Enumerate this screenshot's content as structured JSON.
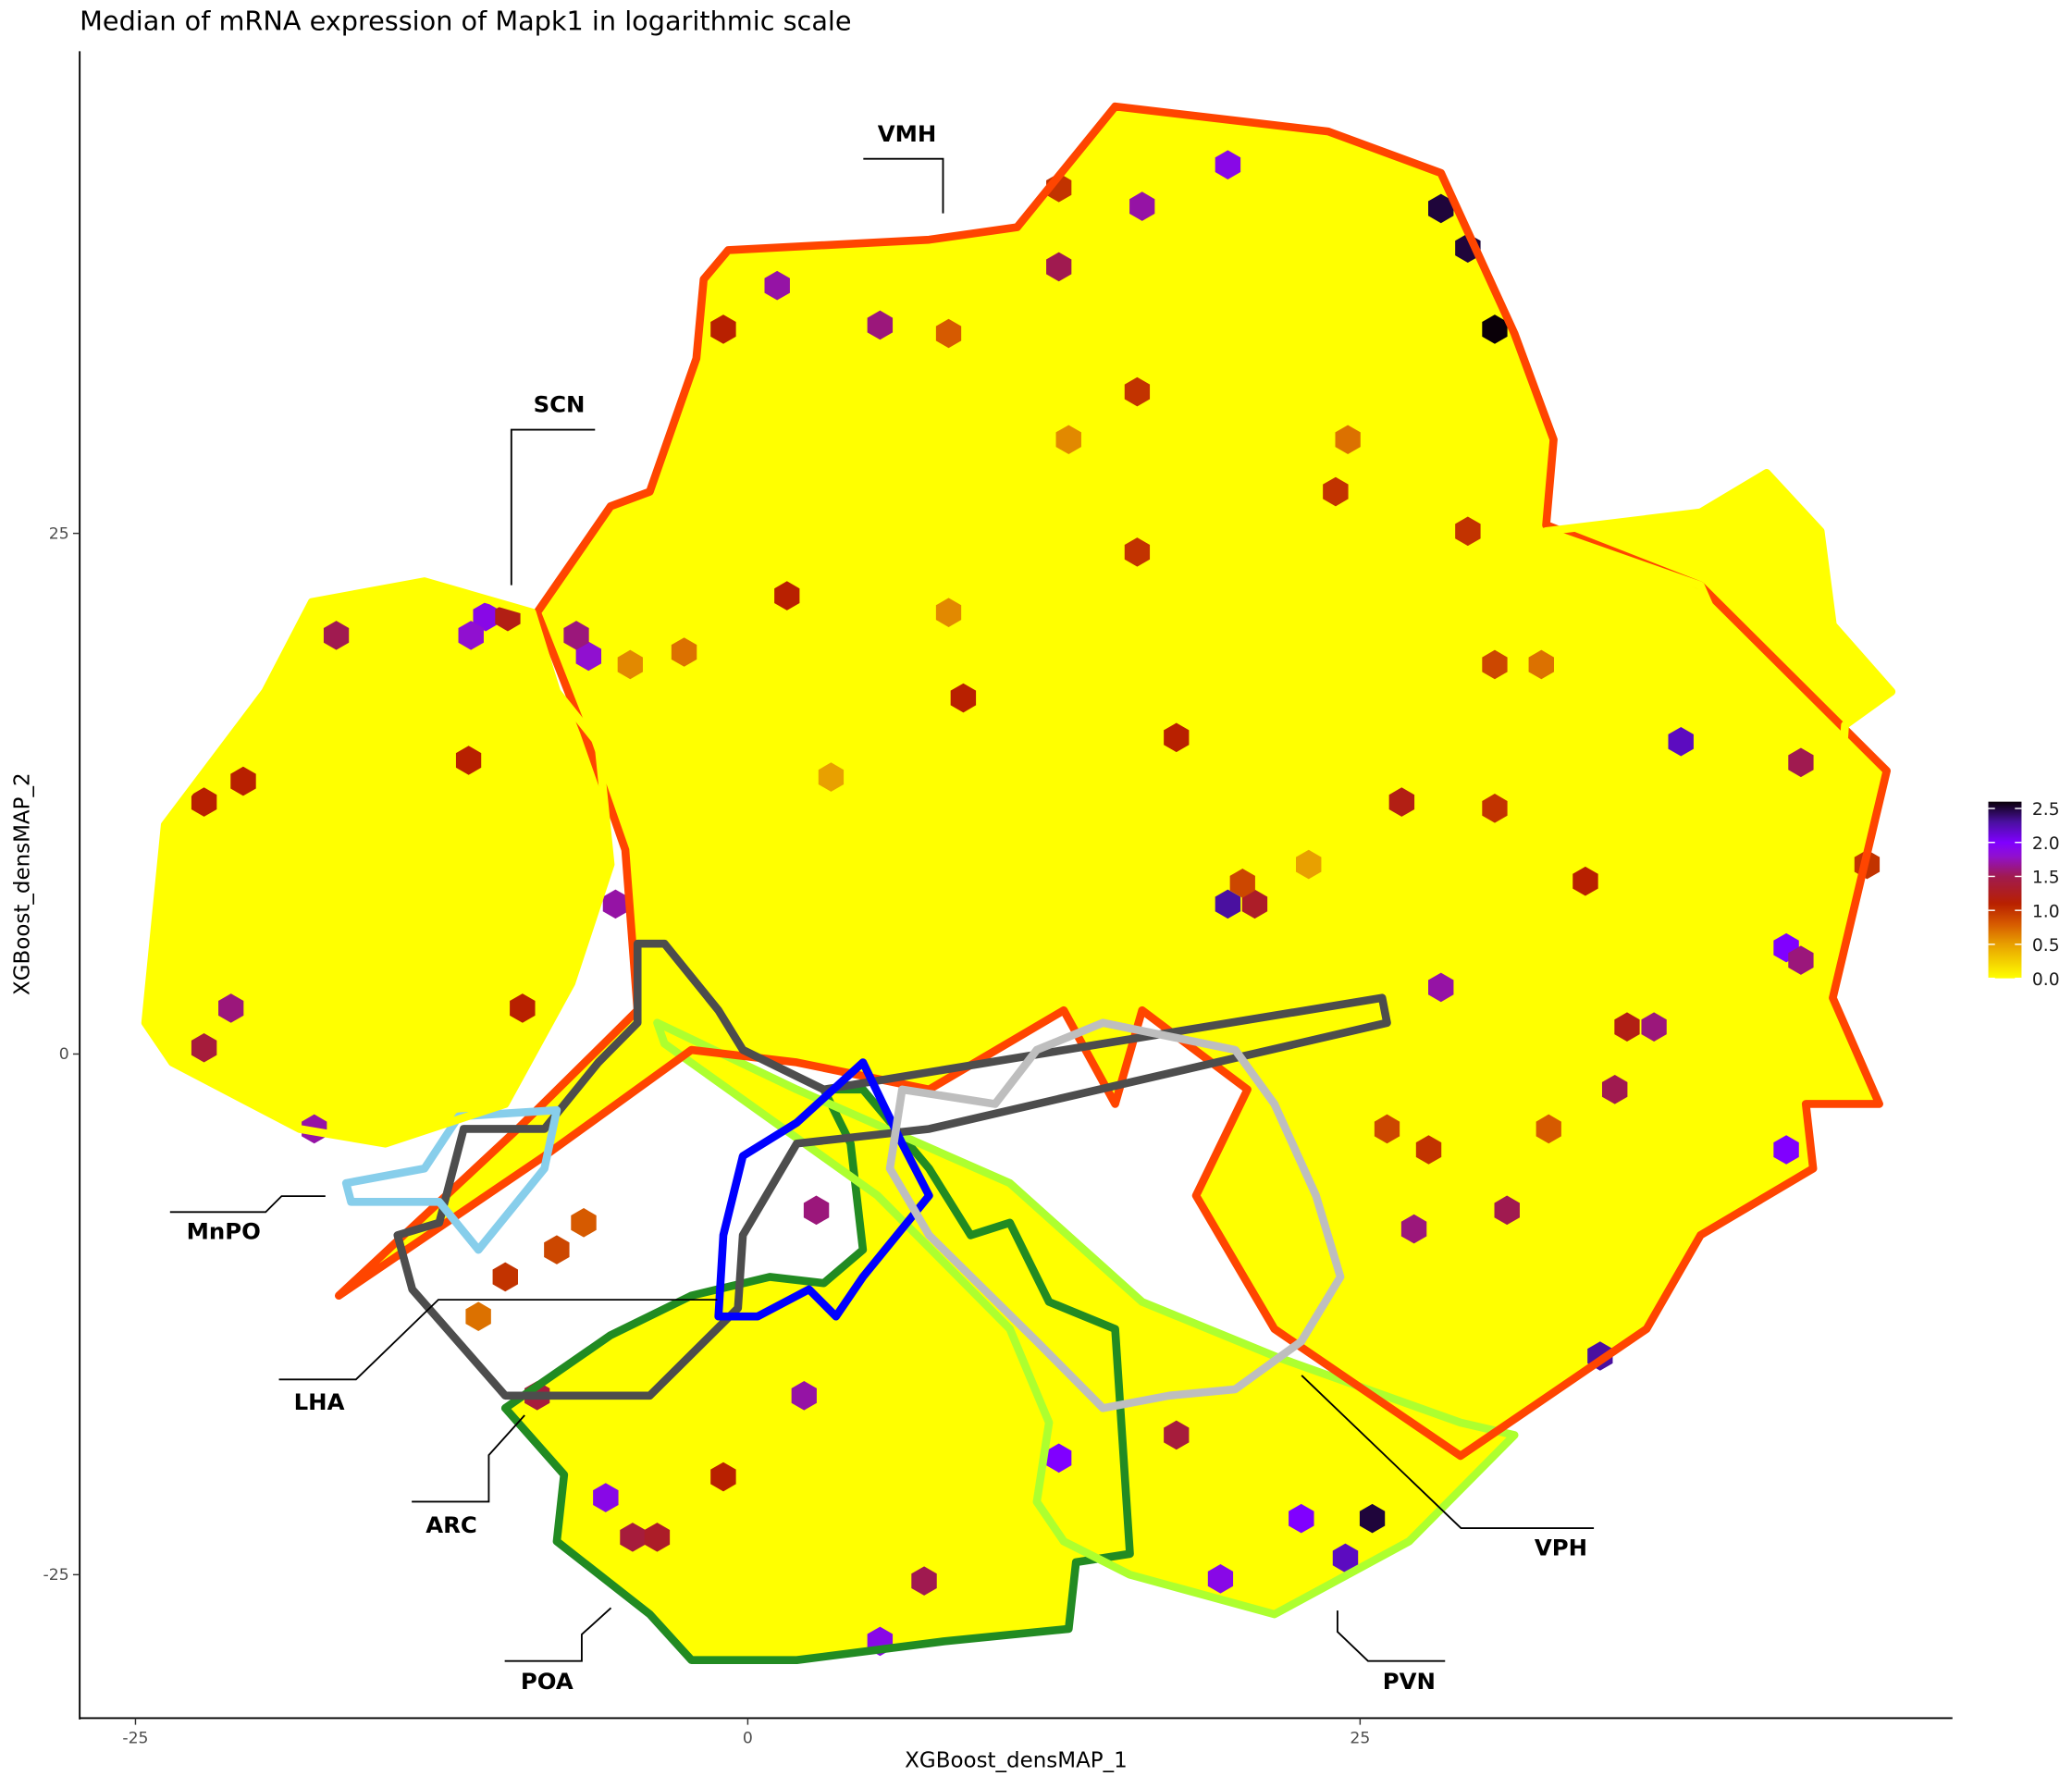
{
  "chart_data": {
    "type": "hexbin",
    "title": "Median of mRNA expression of Mapk1 in logarithmic scale",
    "xlabel": "XGBoost_densMAP_1",
    "ylabel": "XGBoost_densMAP_2",
    "x_ticks": [
      "-25",
      "0",
      "25"
    ],
    "x_tick_values": [
      -25,
      0,
      25
    ],
    "y_ticks": [
      "25",
      "0",
      "-25"
    ],
    "y_tick_values": [
      25,
      0,
      -25
    ],
    "grid": false,
    "background_value": 0.0,
    "colorbar": {
      "placement": "right",
      "ticks": [
        "2.5",
        "2.0",
        "1.5",
        "1.0",
        "0.5",
        "0.0"
      ],
      "tick_values": [
        2.5,
        2.0,
        1.5,
        1.0,
        0.5,
        0.0
      ],
      "range": [
        0,
        2.6
      ],
      "stops": [
        {
          "v": 0.0,
          "color": "#FFFF00"
        },
        {
          "v": 0.5,
          "color": "#E8A000"
        },
        {
          "v": 0.8,
          "color": "#D65A00"
        },
        {
          "v": 1.1,
          "color": "#B82000"
        },
        {
          "v": 1.5,
          "color": "#A01A50"
        },
        {
          "v": 1.8,
          "color": "#9010D0"
        },
        {
          "v": 2.0,
          "color": "#8000FF"
        },
        {
          "v": 2.3,
          "color": "#4A10A0"
        },
        {
          "v": 2.6,
          "color": "#0A0008"
        }
      ]
    },
    "hexes": [
      {
        "x": 28.3,
        "y": 40.6,
        "v": 2.5
      },
      {
        "x": 29.4,
        "y": 38.7,
        "v": 2.5
      },
      {
        "x": 30.5,
        "y": 34.8,
        "v": 2.6
      },
      {
        "x": 19.6,
        "y": 42.7,
        "v": 1.9
      },
      {
        "x": 16.1,
        "y": 40.7,
        "v": 1.7
      },
      {
        "x": 12.7,
        "y": 41.6,
        "v": 1.0
      },
      {
        "x": 12.7,
        "y": 37.8,
        "v": 1.5
      },
      {
        "x": 1.2,
        "y": 36.9,
        "v": 1.7
      },
      {
        "x": 5.4,
        "y": 35.0,
        "v": 1.6
      },
      {
        "x": -1.0,
        "y": 34.8,
        "v": 1.1
      },
      {
        "x": 15.9,
        "y": 31.8,
        "v": 1.0
      },
      {
        "x": 24.0,
        "y": 27.0,
        "v": 1.0
      },
      {
        "x": 15.9,
        "y": 24.1,
        "v": 1.0
      },
      {
        "x": 1.6,
        "y": 22.0,
        "v": 1.1
      },
      {
        "x": 8.8,
        "y": 17.1,
        "v": 1.1
      },
      {
        "x": 17.5,
        "y": 15.2,
        "v": 1.1
      },
      {
        "x": 19.6,
        "y": 7.2,
        "v": 2.3
      },
      {
        "x": 20.7,
        "y": 7.2,
        "v": 1.3
      },
      {
        "x": 20.2,
        "y": 8.2,
        "v": 0.9
      },
      {
        "x": -10.7,
        "y": 21.0,
        "v": 1.9
      },
      {
        "x": -11.3,
        "y": 20.1,
        "v": 1.8
      },
      {
        "x": -16.8,
        "y": 20.1,
        "v": 1.5
      },
      {
        "x": -9.8,
        "y": 21.0,
        "v": 1.2
      },
      {
        "x": -6.5,
        "y": 19.1,
        "v": 1.8
      },
      {
        "x": -7.0,
        "y": 20.1,
        "v": 1.6
      },
      {
        "x": -22.2,
        "y": 12.1,
        "v": 1.1
      },
      {
        "x": -20.6,
        "y": 13.1,
        "v": 1.1
      },
      {
        "x": -11.4,
        "y": 14.1,
        "v": 1.1
      },
      {
        "x": -5.4,
        "y": 7.2,
        "v": 1.7
      },
      {
        "x": -21.1,
        "y": 2.2,
        "v": 1.6
      },
      {
        "x": -22.2,
        "y": 0.3,
        "v": 1.4
      },
      {
        "x": -17.7,
        "y": -3.6,
        "v": 1.7
      },
      {
        "x": -9.2,
        "y": 2.2,
        "v": 1.1
      },
      {
        "x": 38.1,
        "y": 15.0,
        "v": 2.2
      },
      {
        "x": 43.0,
        "y": 14.0,
        "v": 1.5
      },
      {
        "x": 42.4,
        "y": 5.1,
        "v": 2.0
      },
      {
        "x": 43.0,
        "y": 4.5,
        "v": 1.6
      },
      {
        "x": 37.0,
        "y": 1.3,
        "v": 1.6
      },
      {
        "x": 35.9,
        "y": 1.3,
        "v": 1.2
      },
      {
        "x": 42.4,
        "y": -4.6,
        "v": 2.0
      },
      {
        "x": 34.8,
        "y": -14.5,
        "v": 2.3
      },
      {
        "x": 28.3,
        "y": 3.2,
        "v": 1.7
      },
      {
        "x": 35.4,
        "y": -1.7,
        "v": 1.5
      },
      {
        "x": 31.0,
        "y": -7.5,
        "v": 1.5
      },
      {
        "x": 27.2,
        "y": -8.4,
        "v": 1.6
      },
      {
        "x": 2.8,
        "y": -7.5,
        "v": 1.6
      },
      {
        "x": 2.3,
        "y": -16.4,
        "v": 1.7
      },
      {
        "x": -5.8,
        "y": -21.3,
        "v": 1.9
      },
      {
        "x": -4.7,
        "y": -23.2,
        "v": 1.4
      },
      {
        "x": -3.7,
        "y": -23.2,
        "v": 1.3
      },
      {
        "x": -1.0,
        "y": -20.3,
        "v": 1.1
      },
      {
        "x": 5.4,
        "y": -28.2,
        "v": 1.9
      },
      {
        "x": 7.2,
        "y": -25.3,
        "v": 1.5
      },
      {
        "x": 17.5,
        "y": -18.3,
        "v": 1.4
      },
      {
        "x": 12.7,
        "y": -19.4,
        "v": 2.0
      },
      {
        "x": 19.3,
        "y": -25.2,
        "v": 1.9
      },
      {
        "x": 22.6,
        "y": -22.3,
        "v": 2.0
      },
      {
        "x": 25.5,
        "y": -22.3,
        "v": 2.5
      },
      {
        "x": 24.4,
        "y": -24.2,
        "v": 2.2
      },
      {
        "x": -8.6,
        "y": -16.4,
        "v": 1.4
      },
      {
        "x": 30.5,
        "y": 11.8,
        "v": 1.0
      },
      {
        "x": 26.7,
        "y": 12.1,
        "v": 1.2
      },
      {
        "x": 34.2,
        "y": 8.3,
        "v": 1.1
      },
      {
        "x": 45.7,
        "y": 9.1,
        "v": 1.0
      },
      {
        "x": 22.9,
        "y": 9.1,
        "v": 0.5
      },
      {
        "x": 8.2,
        "y": 21.2,
        "v": 0.6
      },
      {
        "x": -4.8,
        "y": 18.7,
        "v": 0.6
      },
      {
        "x": -2.6,
        "y": 19.3,
        "v": 0.7
      },
      {
        "x": 8.2,
        "y": 34.6,
        "v": 0.8
      },
      {
        "x": 3.4,
        "y": 13.3,
        "v": 0.5
      },
      {
        "x": 30.5,
        "y": 18.7,
        "v": 0.9
      },
      {
        "x": 32.4,
        "y": 18.7,
        "v": 0.7
      },
      {
        "x": -7.8,
        "y": -9.4,
        "v": 0.9
      },
      {
        "x": -6.7,
        "y": -8.1,
        "v": 0.8
      },
      {
        "x": -9.9,
        "y": -10.7,
        "v": 1.0
      },
      {
        "x": -11.0,
        "y": -12.6,
        "v": 0.7
      },
      {
        "x": 24.5,
        "y": 29.5,
        "v": 0.7
      },
      {
        "x": 13.1,
        "y": 29.5,
        "v": 0.6
      },
      {
        "x": 29.4,
        "y": 25.1,
        "v": 1.0
      },
      {
        "x": 27.8,
        "y": -4.6,
        "v": 1.0
      },
      {
        "x": 32.7,
        "y": -3.6,
        "v": 0.8
      },
      {
        "x": 26.1,
        "y": -3.6,
        "v": 0.9
      }
    ],
    "outlines": [
      {
        "color": "#FFFF00",
        "fill": true,
        "points": [
          [
            -17.8,
            21.7
          ],
          [
            -13.2,
            22.7
          ],
          [
            -8.8,
            21.2
          ],
          [
            -7.8,
            17.4
          ],
          [
            -6.1,
            14.9
          ],
          [
            -5.6,
            9.1
          ],
          [
            -7.2,
            3.4
          ],
          [
            -9.9,
            -2.4
          ],
          [
            -14.8,
            -4.3
          ],
          [
            -18.3,
            -3.6
          ],
          [
            -23.5,
            -0.4
          ],
          [
            -24.6,
            1.5
          ],
          [
            -23.8,
            11.0
          ],
          [
            -19.7,
            17.4
          ]
        ]
      },
      {
        "color": "#FFFF00",
        "fill": true,
        "points": [
          [
            32.6,
            25.1
          ],
          [
            38.9,
            26.0
          ],
          [
            41.6,
            27.9
          ],
          [
            43.8,
            25.1
          ],
          [
            44.3,
            20.6
          ],
          [
            46.7,
            17.4
          ],
          [
            44.8,
            15.8
          ],
          [
            44.6,
            12.3
          ],
          [
            43.2,
            11.0
          ],
          [
            38.9,
            22.5
          ]
        ]
      },
      {
        "color": "#228B22",
        "fill": true,
        "points": [
          [
            -9.9,
            -17.0
          ],
          [
            -5.6,
            -13.5
          ],
          [
            -2.3,
            -11.6
          ],
          [
            0.9,
            -10.7
          ],
          [
            3.1,
            -11.0
          ],
          [
            4.7,
            -9.4
          ],
          [
            4.2,
            -4.3
          ],
          [
            3.1,
            -1.7
          ],
          [
            4.7,
            -1.7
          ],
          [
            7.4,
            -5.5
          ],
          [
            9.1,
            -8.7
          ],
          [
            10.7,
            -8.1
          ],
          [
            12.3,
            -11.9
          ],
          [
            15.0,
            -13.2
          ],
          [
            15.6,
            -24.0
          ],
          [
            13.4,
            -24.4
          ],
          [
            13.1,
            -27.6
          ],
          [
            8.0,
            -28.2
          ],
          [
            2.0,
            -29.1
          ],
          [
            -2.3,
            -29.1
          ],
          [
            -4.0,
            -26.9
          ],
          [
            -7.8,
            -23.4
          ],
          [
            -7.5,
            -20.2
          ]
        ]
      },
      {
        "color": "#ADFF2F",
        "fill": true,
        "points": [
          [
            -3.7,
            1.5
          ],
          [
            2.0,
            -1.7
          ],
          [
            10.7,
            -6.2
          ],
          [
            16.1,
            -11.9
          ],
          [
            21.5,
            -14.5
          ],
          [
            29.1,
            -17.7
          ],
          [
            31.3,
            -18.3
          ],
          [
            27.0,
            -23.4
          ],
          [
            21.5,
            -26.9
          ],
          [
            15.6,
            -25.0
          ],
          [
            12.9,
            -23.4
          ],
          [
            11.8,
            -21.5
          ],
          [
            12.3,
            -17.7
          ],
          [
            10.7,
            -13.2
          ],
          [
            5.3,
            -6.8
          ],
          [
            -3.4,
            0.5
          ]
        ]
      },
      {
        "color": "#FF4500",
        "fill": true,
        "points": [
          [
            -0.8,
            38.6
          ],
          [
            7.4,
            39.1
          ],
          [
            11.0,
            39.7
          ],
          [
            15.0,
            45.5
          ],
          [
            23.7,
            44.3
          ],
          [
            28.3,
            42.3
          ],
          [
            31.3,
            34.6
          ],
          [
            32.9,
            29.5
          ],
          [
            32.6,
            25.4
          ],
          [
            38.9,
            22.5
          ],
          [
            46.5,
            13.6
          ],
          [
            44.3,
            2.7
          ],
          [
            46.2,
            -2.4
          ],
          [
            43.2,
            -2.4
          ],
          [
            43.5,
            -5.5
          ],
          [
            38.9,
            -8.7
          ],
          [
            36.7,
            -13.2
          ],
          [
            29.1,
            -19.3
          ],
          [
            21.5,
            -13.2
          ],
          [
            18.3,
            -6.8
          ],
          [
            20.4,
            -1.7
          ],
          [
            16.1,
            2.1
          ],
          [
            15.0,
            -2.4
          ],
          [
            12.9,
            2.1
          ],
          [
            7.4,
            -1.7
          ],
          [
            2.0,
            -0.4
          ],
          [
            -2.3,
            0.2
          ],
          [
            -8.3,
            -4.9
          ],
          [
            -16.7,
            -11.6
          ],
          [
            -9.4,
            -3.6
          ],
          [
            -4.5,
            2.1
          ],
          [
            -5.0,
            9.8
          ],
          [
            -6.7,
            15.5
          ],
          [
            -8.6,
            21.2
          ],
          [
            -5.6,
            26.3
          ],
          [
            -4.0,
            27.0
          ],
          [
            -2.1,
            33.4
          ],
          [
            -1.8,
            37.2
          ]
        ]
      },
      {
        "color": "#4D4D4D",
        "fill": false,
        "points": [
          [
            -4.5,
            5.3
          ],
          [
            -3.4,
            5.3
          ],
          [
            -1.2,
            2.1
          ],
          [
            -0.2,
            0.2
          ],
          [
            3.1,
            -1.7
          ],
          [
            25.9,
            2.7
          ],
          [
            26.1,
            1.5
          ],
          [
            7.4,
            -3.6
          ],
          [
            2.0,
            -4.3
          ],
          [
            -0.2,
            -8.7
          ],
          [
            -0.4,
            -12.2
          ],
          [
            -4.0,
            -16.4
          ],
          [
            -9.9,
            -16.4
          ],
          [
            -13.7,
            -11.3
          ],
          [
            -14.3,
            -8.7
          ],
          [
            -12.6,
            -8.1
          ],
          [
            -11.6,
            -3.6
          ],
          [
            -8.3,
            -3.6
          ],
          [
            -6.1,
            -0.4
          ],
          [
            -4.5,
            1.5
          ]
        ]
      },
      {
        "color": "#0000FF",
        "fill": false,
        "points": [
          [
            -1.2,
            -12.6
          ],
          [
            -1.0,
            -8.7
          ],
          [
            -0.2,
            -4.9
          ],
          [
            2.0,
            -3.3
          ],
          [
            4.7,
            -0.4
          ],
          [
            6.3,
            -4.3
          ],
          [
            7.4,
            -6.8
          ],
          [
            4.7,
            -10.7
          ],
          [
            3.6,
            -12.6
          ],
          [
            2.5,
            -11.3
          ],
          [
            0.4,
            -12.6
          ]
        ]
      },
      {
        "color": "#BEBEBE",
        "fill": false,
        "points": [
          [
            6.3,
            -1.7
          ],
          [
            10.1,
            -2.4
          ],
          [
            11.8,
            0.2
          ],
          [
            14.5,
            1.5
          ],
          [
            19.9,
            0.2
          ],
          [
            21.5,
            -2.4
          ],
          [
            23.2,
            -6.8
          ],
          [
            24.2,
            -10.7
          ],
          [
            22.6,
            -13.8
          ],
          [
            19.9,
            -16.1
          ],
          [
            17.2,
            -16.4
          ],
          [
            14.5,
            -17.0
          ],
          [
            11.8,
            -13.8
          ],
          [
            7.4,
            -8.7
          ],
          [
            5.8,
            -5.5
          ]
        ]
      },
      {
        "color": "#87CEEB",
        "fill": false,
        "points": [
          [
            -16.4,
            -6.2
          ],
          [
            -13.2,
            -5.5
          ],
          [
            -11.8,
            -3.0
          ],
          [
            -7.8,
            -2.7
          ],
          [
            -8.3,
            -5.5
          ],
          [
            -11.0,
            -9.4
          ],
          [
            -12.6,
            -7.1
          ],
          [
            -16.2,
            -7.1
          ]
        ]
      }
    ],
    "region_labels": [
      {
        "text": "VMH",
        "x": 6.5,
        "y": 44.2
      },
      {
        "text": "SCN",
        "x": -7.7,
        "y": 31.2
      },
      {
        "text": "MnPO",
        "x": -21.4,
        "y": -8.5
      },
      {
        "text": "LHA",
        "x": -17.5,
        "y": -16.7
      },
      {
        "text": "ARC",
        "x": -12.1,
        "y": -22.6
      },
      {
        "text": "POA",
        "x": -8.2,
        "y": -30.1
      },
      {
        "text": "PVN",
        "x": 27.0,
        "y": -30.1
      },
      {
        "text": "VPH",
        "x": 33.2,
        "y": -23.7
      }
    ]
  }
}
